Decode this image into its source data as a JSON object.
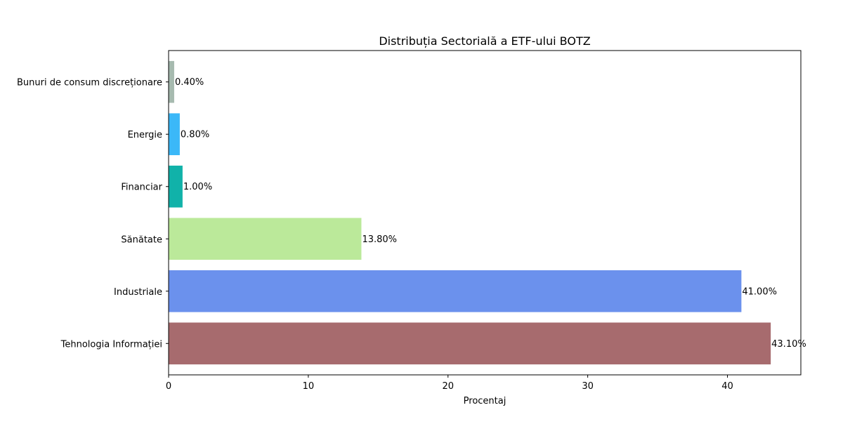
{
  "chart_data": {
    "type": "bar",
    "orientation": "horizontal",
    "title": "Distribuția Sectorială a ETF-ului BOTZ",
    "xlabel": "Procentaj",
    "ylabel": "",
    "xlim": [
      0,
      45.255
    ],
    "xticks": [
      0,
      10,
      20,
      30,
      40
    ],
    "grid": false,
    "categories": [
      "Tehnologia Informației",
      "Industriale",
      "Sănătate",
      "Financiar",
      "Energie",
      "Bunuri de consum discreționare"
    ],
    "values": [
      43.1,
      41.0,
      13.8,
      1.0,
      0.8,
      0.4
    ],
    "value_labels": [
      "43.10%",
      "41.00%",
      "13.80%",
      "1.00%",
      "0.80%",
      "0.40%"
    ],
    "colors": [
      "#a76b6e",
      "#6b91ed",
      "#bbe99a",
      "#11b2a9",
      "#3bb8f8",
      "#a6baaf"
    ]
  }
}
